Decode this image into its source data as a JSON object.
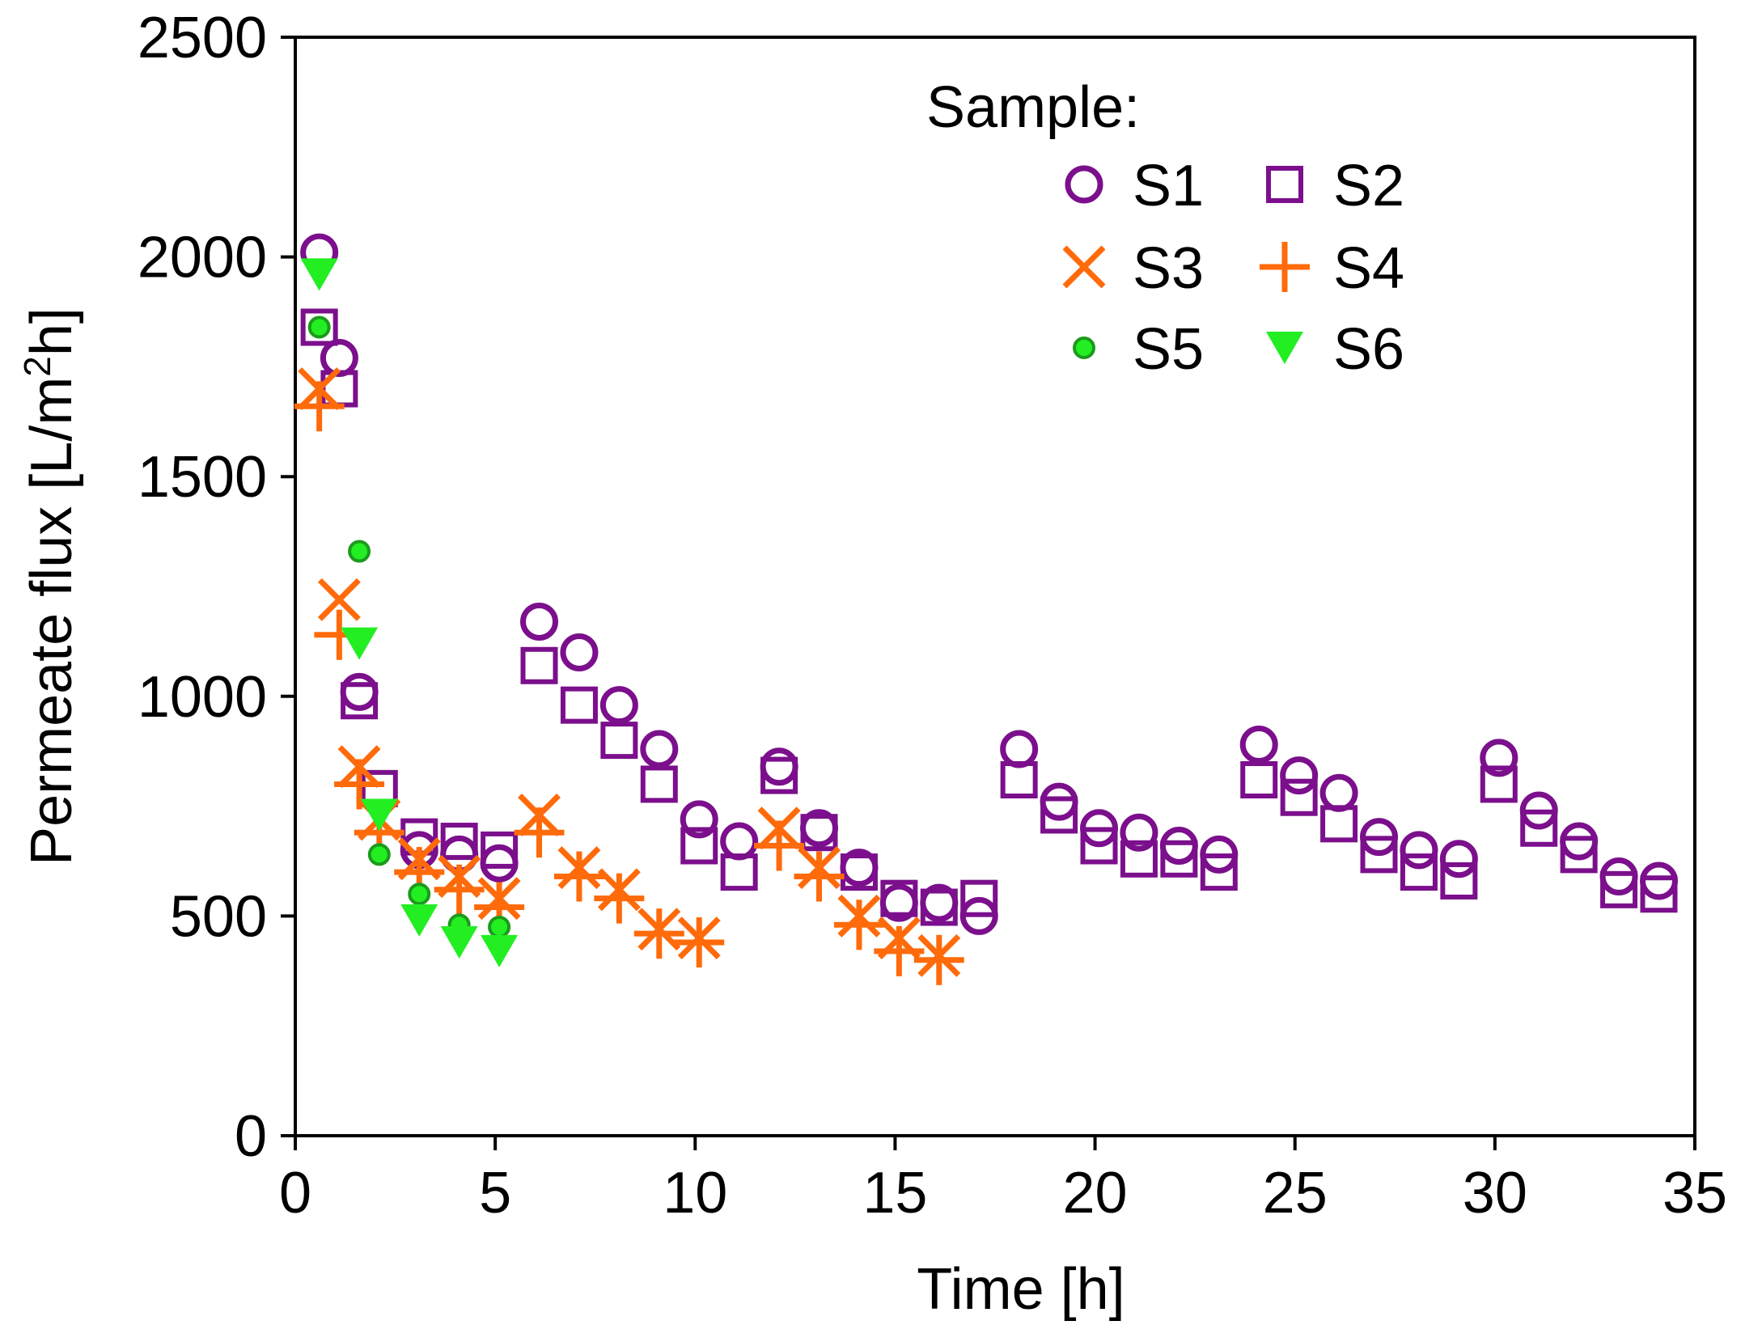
{
  "chart_data": {
    "type": "scatter",
    "title": "",
    "xlabel": "Time [h]",
    "ylabel_main": "Permeate flux [L/m",
    "ylabel_sup": "2",
    "ylabel_end": "h]",
    "xlim": [
      0,
      35
    ],
    "ylim": [
      0,
      2500
    ],
    "xticks": [
      0,
      5,
      10,
      15,
      20,
      25,
      30,
      35
    ],
    "yticks": [
      0,
      500,
      1000,
      1500,
      2000,
      2500
    ],
    "grid": false,
    "legend": {
      "title": "Sample:",
      "placement": "top-right",
      "columns": 2
    },
    "colors": {
      "purple": "#7b0f8c",
      "orange": "#ff6a0a",
      "green_dark": "#1c9a1c",
      "green_light": "#22ee22"
    },
    "series": [
      {
        "name": "S1",
        "marker": "circle",
        "color": "#7b0f8c",
        "x": [
          0.6,
          1.1,
          1.6,
          3.1,
          4.1,
          5.1,
          6.1,
          7.1,
          8.1,
          9.1,
          10.1,
          11.1,
          12.1,
          13.1,
          14.1,
          15.1,
          16.1,
          17.1,
          18.1,
          19.1,
          20.1,
          21.1,
          22.1,
          23.1,
          24.1,
          25.1,
          26.1,
          27.1,
          28.1,
          29.1,
          30.1,
          31.1,
          32.1,
          33.1,
          34.1
        ],
        "y": [
          2010,
          1770,
          1010,
          650,
          640,
          620,
          1170,
          1100,
          980,
          880,
          720,
          670,
          840,
          700,
          610,
          530,
          530,
          500,
          880,
          760,
          700,
          690,
          660,
          640,
          890,
          820,
          780,
          680,
          650,
          630,
          860,
          740,
          670,
          590,
          580
        ]
      },
      {
        "name": "S2",
        "marker": "square",
        "color": "#7b0f8c",
        "x": [
          0.6,
          1.1,
          1.6,
          2.1,
          3.1,
          4.1,
          5.1,
          6.1,
          7.1,
          8.1,
          9.1,
          10.1,
          11.1,
          12.1,
          13.1,
          14.1,
          15.1,
          16.1,
          17.1,
          18.1,
          19.1,
          20.1,
          21.1,
          22.1,
          23.1,
          24.1,
          25.1,
          26.1,
          27.1,
          28.1,
          29.1,
          30.1,
          31.1,
          32.1,
          33.1,
          34.1
        ],
        "y": [
          1840,
          1700,
          990,
          790,
          680,
          670,
          650,
          1070,
          980,
          900,
          800,
          660,
          600,
          820,
          690,
          600,
          540,
          520,
          540,
          810,
          730,
          660,
          630,
          630,
          600,
          810,
          770,
          710,
          640,
          600,
          580,
          800,
          700,
          640,
          560,
          550
        ]
      },
      {
        "name": "S3",
        "marker": "x",
        "color": "#ff6a0a",
        "x": [
          0.6,
          1.1,
          1.6,
          2.1,
          3.1,
          4.1,
          5.1,
          6.1,
          7.1,
          8.1,
          9.1,
          10.1,
          12.1,
          13.1,
          14.1,
          15.1,
          16.1
        ],
        "y": [
          1700,
          1220,
          840,
          720,
          630,
          590,
          540,
          730,
          610,
          560,
          470,
          450,
          700,
          610,
          500,
          450,
          410
        ]
      },
      {
        "name": "S4",
        "marker": "plus",
        "color": "#ff6a0a",
        "x": [
          0.6,
          1.1,
          1.6,
          2.1,
          3.1,
          4.1,
          5.1,
          6.1,
          7.1,
          8.1,
          9.1,
          10.1,
          12.1,
          13.1,
          14.1,
          15.1,
          16.1
        ],
        "y": [
          1660,
          1140,
          800,
          690,
          600,
          560,
          520,
          690,
          590,
          540,
          460,
          440,
          660,
          590,
          480,
          420,
          400
        ]
      },
      {
        "name": "S5",
        "marker": "dot",
        "color": "#22ee22",
        "edge": "#1c9a1c",
        "x": [
          0.6,
          1.6,
          2.1,
          3.1,
          4.1,
          5.1
        ],
        "y": [
          1840,
          1330,
          640,
          550,
          480,
          475
        ]
      },
      {
        "name": "S6",
        "marker": "triangle-down",
        "color": "#22ee22",
        "x": [
          0.6,
          1.6,
          2.1,
          3.1,
          4.1,
          5.1
        ],
        "y": [
          1960,
          1120,
          730,
          490,
          440,
          420
        ]
      }
    ]
  }
}
